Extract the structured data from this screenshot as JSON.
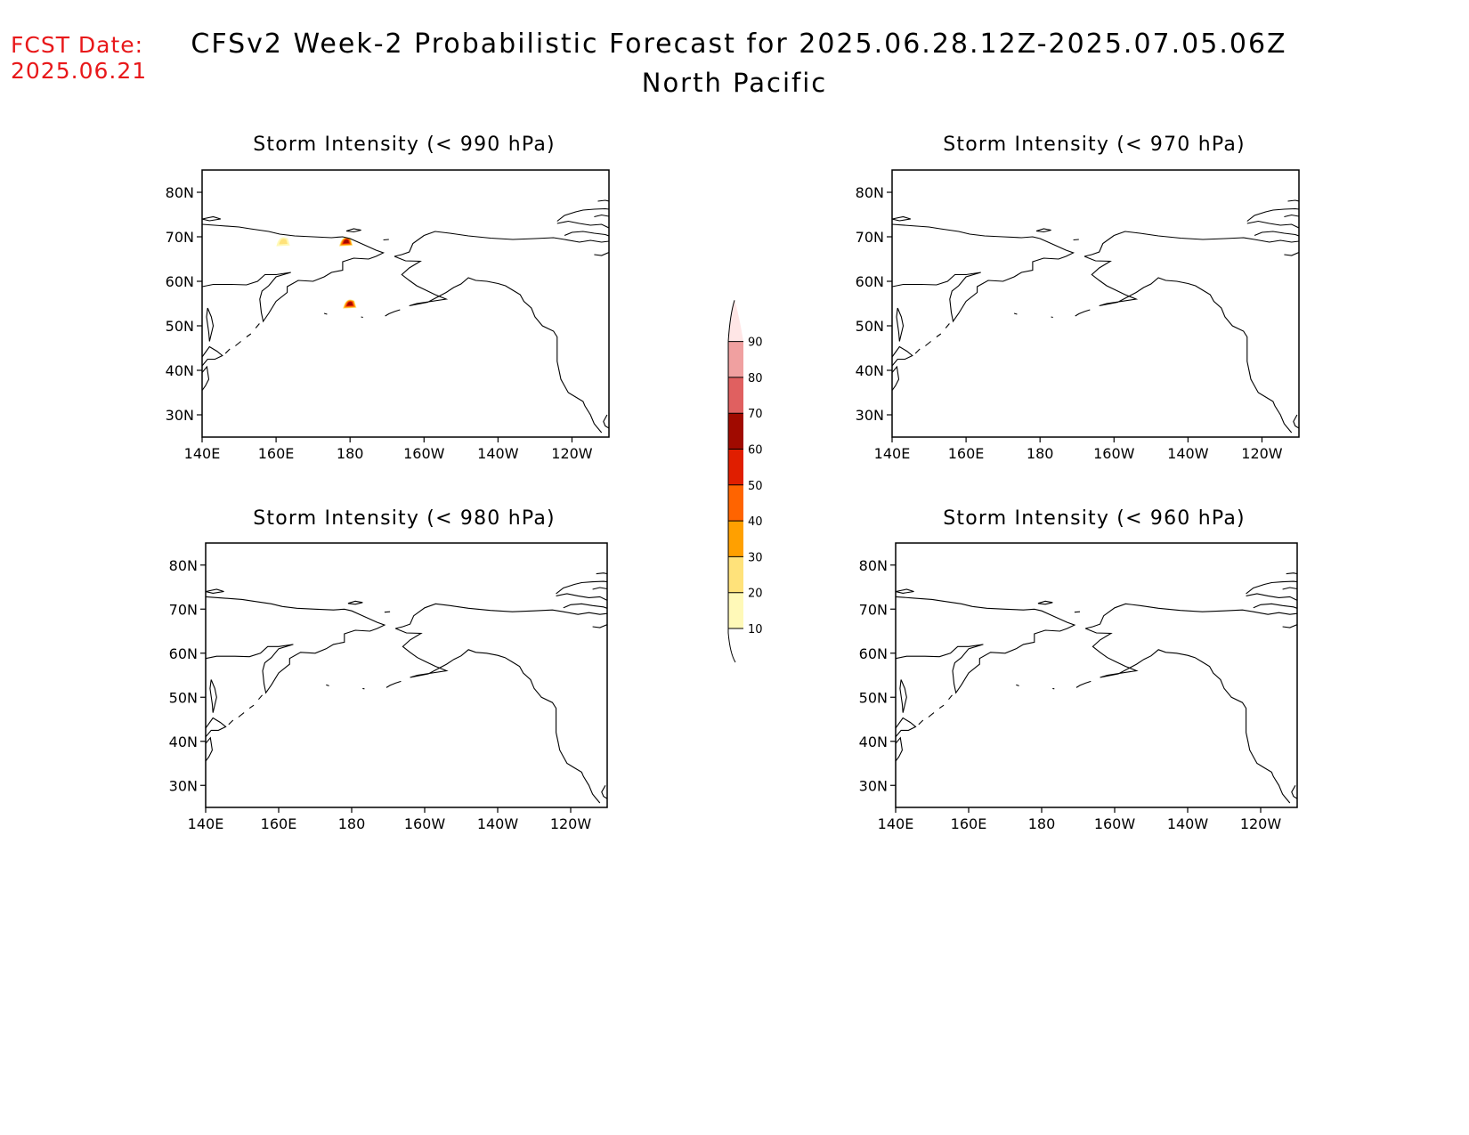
{
  "header": {
    "fcst_label": "FCST Date:",
    "fcst_date": "2025.06.21",
    "title": "CFSv2 Week-2 Probabilistic Forecast for 2025.06.28.12Z-2025.07.05.06Z",
    "subtitle": "North Pacific"
  },
  "axes": {
    "lon_ticks": [
      "140E",
      "160E",
      "180",
      "160W",
      "140W",
      "120W"
    ],
    "lat_ticks": [
      "80N",
      "70N",
      "60N",
      "50N",
      "40N",
      "30N"
    ]
  },
  "panels": [
    {
      "title": "Storm Intensity (< 990 hPa)",
      "threshold_hPa": 990
    },
    {
      "title": "Storm Intensity (< 970 hPa)",
      "threshold_hPa": 970
    },
    {
      "title": "Storm Intensity (< 980 hPa)",
      "threshold_hPa": 980
    },
    {
      "title": "Storm Intensity (< 960 hPa)",
      "threshold_hPa": 960
    }
  ],
  "colorbar": {
    "levels": [
      "10",
      "20",
      "30",
      "40",
      "50",
      "60",
      "70",
      "80",
      "90"
    ],
    "colors": [
      "#fff9b8",
      "#ffe27a",
      "#ffa000",
      "#ff6400",
      "#e01e00",
      "#a00a00",
      "#e06060",
      "#f0a0a0",
      "#ffe6e6"
    ]
  },
  "chart_data": {
    "type": "heatmap",
    "domain": {
      "lon_range": [
        140,
        250
      ],
      "lat_range": [
        25,
        85
      ]
    },
    "panels": [
      {
        "threshold_hPa": 990,
        "features": [
          {
            "lon": 162,
            "lat": 69,
            "prob_range": [
              10,
              20
            ]
          },
          {
            "lon": 179,
            "lat": 69,
            "prob_range": [
              20,
              60
            ]
          },
          {
            "lon": 180,
            "lat": 55,
            "prob_range": [
              20,
              60
            ]
          }
        ]
      },
      {
        "threshold_hPa": 970,
        "features": []
      },
      {
        "threshold_hPa": 980,
        "features": []
      },
      {
        "threshold_hPa": 960,
        "features": []
      }
    ]
  }
}
